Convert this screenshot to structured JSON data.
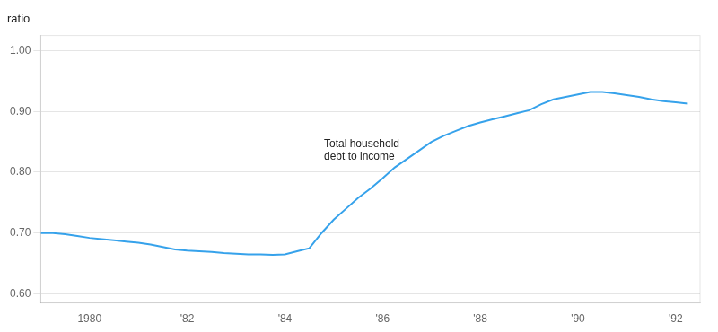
{
  "chart_data": {
    "type": "line",
    "title": "ratio",
    "annotations": [
      {
        "text": "Total household\ndebt to income",
        "x": 1984.8,
        "y": 0.836
      }
    ],
    "x": [
      1979.0,
      1979.25,
      1979.5,
      1979.75,
      1980.0,
      1980.25,
      1980.5,
      1980.75,
      1981.0,
      1981.25,
      1981.5,
      1981.75,
      1982.0,
      1982.25,
      1982.5,
      1982.75,
      1983.0,
      1983.25,
      1983.5,
      1983.75,
      1984.0,
      1984.25,
      1984.5,
      1984.75,
      1985.0,
      1985.25,
      1985.5,
      1985.75,
      1986.0,
      1986.25,
      1986.5,
      1986.75,
      1987.0,
      1987.25,
      1987.5,
      1987.75,
      1988.0,
      1988.25,
      1988.5,
      1988.75,
      1989.0,
      1989.25,
      1989.5,
      1989.75,
      1990.0,
      1990.25,
      1990.5,
      1990.75,
      1991.0,
      1991.25,
      1991.5,
      1991.75,
      1992.0,
      1992.25
    ],
    "values": [
      0.7,
      0.7,
      0.698,
      0.695,
      0.692,
      0.69,
      0.688,
      0.686,
      0.684,
      0.681,
      0.677,
      0.673,
      0.671,
      0.67,
      0.669,
      0.667,
      0.666,
      0.665,
      0.665,
      0.664,
      0.665,
      0.67,
      0.675,
      0.7,
      0.722,
      0.74,
      0.758,
      0.773,
      0.79,
      0.808,
      0.822,
      0.836,
      0.85,
      0.86,
      0.868,
      0.876,
      0.882,
      0.887,
      0.892,
      0.897,
      0.902,
      0.912,
      0.92,
      0.924,
      0.928,
      0.932,
      0.932,
      0.93,
      0.927,
      0.924,
      0.92,
      0.917,
      0.915,
      0.913
    ],
    "xlim": [
      1979.0,
      1992.5
    ],
    "ylim": [
      0.585,
      1.025
    ],
    "xticks": [
      1980,
      {
        "value": 1982,
        "label": "'82"
      },
      {
        "value": 1984,
        "label": "'84"
      },
      {
        "value": 1986,
        "label": "'86"
      },
      {
        "value": 1988,
        "label": "'88"
      },
      {
        "value": 1990,
        "label": "'90"
      },
      {
        "value": 1992,
        "label": "'92"
      }
    ],
    "yticks": [
      {
        "value": 0.6,
        "label": "0.60"
      },
      {
        "value": 0.7,
        "label": "0.70"
      },
      {
        "value": 0.8,
        "label": "0.80"
      },
      {
        "value": 0.9,
        "label": "0.90"
      },
      {
        "value": 1.0,
        "label": "1.00"
      }
    ],
    "grid": "y"
  }
}
